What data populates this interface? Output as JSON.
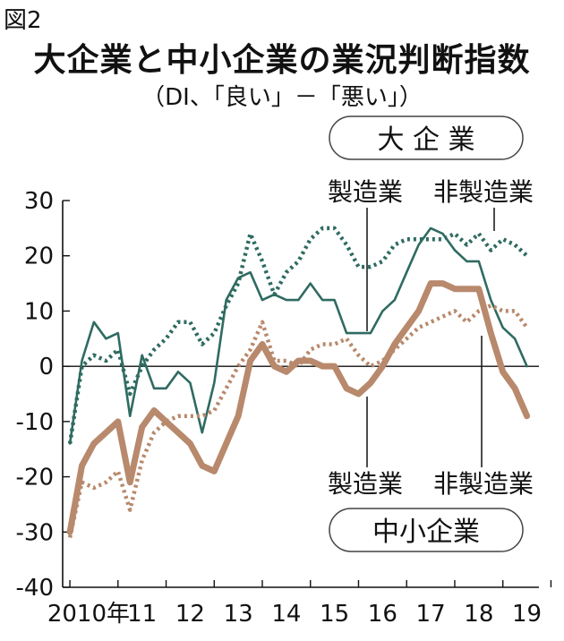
{
  "figure_label": "図2",
  "title": "大企業と中小企業の業況判断指数",
  "subtitle": "（DI、「良い」－「悪い」）",
  "group_labels": {
    "large": "大 企 業",
    "small": "中小企業"
  },
  "series_labels": {
    "manufacturing": "製造業",
    "non_manufacturing": "非製造業"
  },
  "colors": {
    "large": "#2f6b61",
    "small": "#b8896c"
  },
  "chart_data": {
    "type": "line",
    "title": "大企業と中小企業の業況判断指数",
    "subtitle": "（DI、「良い」－「悪い」）",
    "x": [
      2010.0,
      2010.25,
      2010.5,
      2010.75,
      2011.0,
      2011.25,
      2011.5,
      2011.75,
      2012.0,
      2012.25,
      2012.5,
      2012.75,
      2013.0,
      2013.25,
      2013.5,
      2013.75,
      2014.0,
      2014.25,
      2014.5,
      2014.75,
      2015.0,
      2015.25,
      2015.5,
      2015.75,
      2016.0,
      2016.25,
      2016.5,
      2016.75,
      2017.0,
      2017.25,
      2017.5,
      2017.75,
      2018.0,
      2018.25,
      2018.5,
      2018.75,
      2019.0,
      2019.25,
      2019.5
    ],
    "x_tick_labels": [
      "2010年",
      "11",
      "12",
      "13",
      "14",
      "15",
      "16",
      "17",
      "18",
      "19"
    ],
    "ylim": [
      -40,
      30
    ],
    "y_ticks": [
      30,
      20,
      10,
      0,
      -10,
      -20,
      -30,
      -40
    ],
    "series": [
      {
        "name": "大企業 製造業",
        "group": "large",
        "style": "solid",
        "values": [
          -14,
          1,
          8,
          5,
          6,
          -9,
          2,
          -4,
          -4,
          -1,
          -3,
          -12,
          -3,
          12,
          16,
          17,
          12,
          13,
          12,
          12,
          15,
          12,
          12,
          6,
          6,
          6,
          10,
          12,
          17,
          22,
          25,
          24,
          21,
          19,
          19,
          12,
          7,
          5,
          0
        ]
      },
      {
        "name": "大企業 非製造業",
        "group": "large",
        "style": "dotted",
        "values": [
          -14,
          0,
          2,
          1,
          3,
          -5,
          0,
          3,
          5,
          8,
          8,
          4,
          6,
          11,
          15,
          24,
          19,
          13,
          17,
          19,
          23,
          25,
          25,
          22,
          18,
          18,
          19,
          22,
          23,
          23,
          23,
          23,
          24,
          22,
          24,
          21,
          23,
          22,
          20
        ]
      },
      {
        "name": "中小企業 製造業",
        "group": "small",
        "style": "solid",
        "values": [
          -30,
          -18,
          -14,
          -12,
          -10,
          -21,
          -11,
          -8,
          -10,
          -12,
          -14,
          -18,
          -19,
          -14,
          -9,
          1,
          4,
          0,
          -1,
          1,
          1,
          0,
          0,
          -4,
          -5,
          -3,
          0,
          4,
          7,
          10,
          15,
          15,
          14,
          14,
          14,
          6,
          -1,
          -4,
          -9
        ]
      },
      {
        "name": "中小企業 非製造業",
        "group": "small",
        "style": "dotted",
        "values": [
          -31,
          -21,
          -22,
          -21,
          -19,
          -26,
          -17,
          -12,
          -10,
          -9,
          -9,
          -9,
          -8,
          -4,
          0,
          3,
          8,
          1,
          1,
          0,
          3,
          4,
          4,
          5,
          2,
          0,
          1,
          3,
          5,
          7,
          8,
          9,
          10,
          8,
          10,
          11,
          10,
          10,
          7
        ]
      }
    ],
    "grid": false,
    "legend": "inline labels"
  }
}
